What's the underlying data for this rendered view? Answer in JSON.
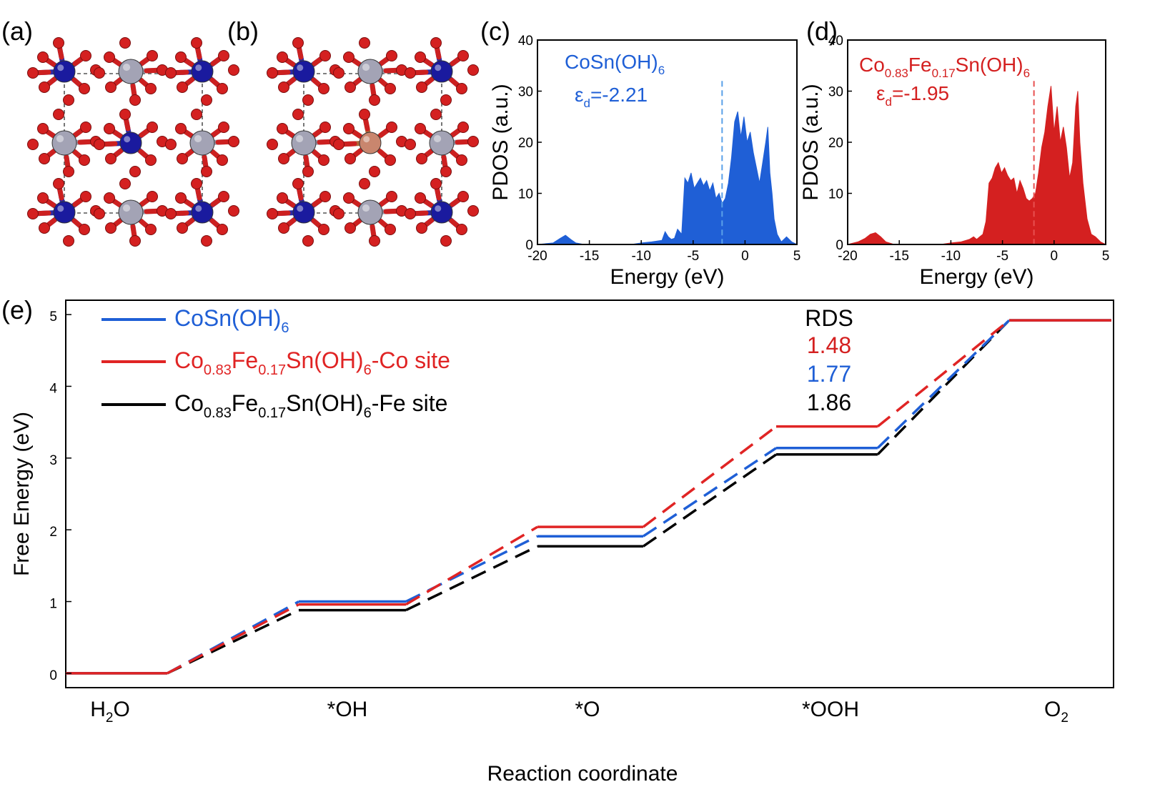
{
  "panel_labels": {
    "a": "(a)",
    "b": "(b)",
    "c": "(c)",
    "d": "(d)",
    "e": "(e)"
  },
  "colors": {
    "blue": "#1f5fd6",
    "red": "#e02424",
    "black": "#000000",
    "co_atom": "#1a1a9e",
    "sn_atom": "#a3a3b5",
    "o_atom": "#d42020",
    "fe_atom": "#c9866e"
  },
  "structures": {
    "a": {
      "atoms": [
        "Co",
        "Sn",
        "O"
      ]
    },
    "b": {
      "atoms": [
        "Co",
        "Sn",
        "Fe",
        "O"
      ]
    }
  },
  "chart_data": [
    {
      "id": "c",
      "type": "area",
      "xlabel": "Energy (eV)",
      "ylabel": "PDOS (a.u.)",
      "xlim": [
        -20,
        5
      ],
      "ylim": [
        0,
        40
      ],
      "xticks": [
        "-20",
        "-15",
        "-10",
        "-5",
        "0",
        "5"
      ],
      "yticks": [
        "0",
        "10",
        "20",
        "30",
        "40"
      ],
      "legend_main": "CoSn(OH)",
      "legend_sub": "6",
      "epsilon_label": "ε",
      "epsilon_sub": "d",
      "epsilon_value": "=-2.21",
      "d_band_center": -2.21,
      "color": "#1f5fd6",
      "x": [
        -20,
        -18.5,
        -17.8,
        -17.3,
        -16.8,
        -16.3,
        -15.5,
        -11,
        -10,
        -9,
        -8,
        -7.7,
        -7.4,
        -7.1,
        -6.8,
        -6.5,
        -6.1,
        -5.8,
        -5.5,
        -5.2,
        -4.9,
        -4.6,
        -4.3,
        -4.0,
        -3.7,
        -3.4,
        -3.1,
        -2.8,
        -2.5,
        -2.2,
        -1.9,
        -1.6,
        -1.3,
        -1.0,
        -0.7,
        -0.4,
        -0.1,
        0.2,
        0.5,
        0.8,
        1.1,
        1.4,
        1.7,
        2.0,
        2.2,
        2.4,
        2.6,
        2.8,
        3.1,
        3.5,
        4.0,
        4.5,
        5.0
      ],
      "y": [
        0,
        0.3,
        1.2,
        1.8,
        1.0,
        0.3,
        0,
        0,
        0.3,
        0.5,
        0.8,
        2.5,
        1.5,
        1.0,
        1.2,
        3.0,
        2.0,
        13,
        12,
        14,
        11,
        12,
        13,
        11.5,
        12.5,
        10.5,
        12,
        9,
        10,
        8,
        9,
        12,
        17,
        24,
        26,
        21,
        25,
        20,
        22,
        18,
        15,
        12,
        16,
        20,
        23,
        14,
        10,
        5,
        2,
        0.5,
        1.5,
        0.5,
        0
      ]
    },
    {
      "id": "d",
      "type": "area",
      "xlabel": "Energy (eV)",
      "ylabel": "PDOS (a.u.)",
      "xlim": [
        -20,
        5
      ],
      "ylim": [
        0,
        40
      ],
      "xticks": [
        "-20",
        "-15",
        "-10",
        "-5",
        "0",
        "5"
      ],
      "yticks": [
        "0",
        "10",
        "20",
        "30",
        "40"
      ],
      "legend_parts": [
        {
          "t": "Co",
          "sub": false
        },
        {
          "t": "0.83",
          "sub": true
        },
        {
          "t": "Fe",
          "sub": false
        },
        {
          "t": "0.17",
          "sub": true
        },
        {
          "t": "Sn(OH)",
          "sub": false
        },
        {
          "t": "6",
          "sub": true
        }
      ],
      "epsilon_label": "ε",
      "epsilon_sub": "d",
      "epsilon_value": "=-1.95",
      "d_band_center": -1.95,
      "color": "#d42020",
      "x": [
        -20,
        -19,
        -18.3,
        -17.8,
        -17.3,
        -16.8,
        -16.3,
        -15.5,
        -11,
        -10,
        -9,
        -8.2,
        -7.8,
        -7.5,
        -7.2,
        -6.9,
        -6.6,
        -6.3,
        -6.0,
        -5.7,
        -5.4,
        -5.1,
        -4.8,
        -4.5,
        -4.2,
        -3.9,
        -3.6,
        -3.3,
        -3.0,
        -2.7,
        -2.4,
        -2.1,
        -1.8,
        -1.5,
        -1.2,
        -0.9,
        -0.6,
        -0.3,
        0.0,
        0.3,
        0.6,
        0.9,
        1.2,
        1.5,
        1.8,
        2.1,
        2.3,
        2.5,
        2.8,
        3.2,
        3.6,
        4.0,
        4.5,
        5.0
      ],
      "y": [
        0,
        0.5,
        1.2,
        2.0,
        2.3,
        1.5,
        0.5,
        0,
        0,
        0.3,
        0.5,
        1.0,
        1.5,
        1.0,
        1.5,
        2.0,
        4.5,
        12,
        13,
        15,
        16,
        14,
        15,
        13.5,
        12.5,
        13,
        10,
        12.5,
        11,
        9,
        8.5,
        9,
        10,
        14,
        19,
        22,
        27,
        31,
        22,
        27,
        20,
        23,
        19,
        13,
        16,
        27,
        30,
        20,
        12,
        5,
        2,
        1.5,
        0.5,
        0
      ]
    },
    {
      "id": "e",
      "type": "line",
      "xlabel": "Reaction coordinate",
      "ylabel": "Free Energy (eV)",
      "ylim": [
        -0.2,
        5.2
      ],
      "yticks": [
        "0",
        "1",
        "2",
        "3",
        "4",
        "5"
      ],
      "categories": [
        {
          "main": "H",
          "sub": "2",
          "tail": "O"
        },
        {
          "main": "*OH",
          "sub": "",
          "tail": ""
        },
        {
          "main": "*O",
          "sub": "",
          "tail": ""
        },
        {
          "main": "*OOH",
          "sub": "",
          "tail": ""
        },
        {
          "main": "O",
          "sub": "2",
          "tail": ""
        }
      ],
      "series": [
        {
          "legend_parts": [
            {
              "t": "CoSn(OH)",
              "sub": false
            },
            {
              "t": "6",
              "sub": true
            }
          ],
          "color": "#1f5fd6",
          "values": [
            0,
            1.0,
            1.91,
            3.14,
            4.92
          ]
        },
        {
          "legend_parts": [
            {
              "t": "Co",
              "sub": false
            },
            {
              "t": "0.83",
              "sub": true
            },
            {
              "t": "Fe",
              "sub": false
            },
            {
              "t": "0.17",
              "sub": true
            },
            {
              "t": "Sn(OH)",
              "sub": false
            },
            {
              "t": "6",
              "sub": true
            },
            {
              "t": "-Co site",
              "sub": false
            }
          ],
          "color": "#e02424",
          "values": [
            0,
            0.96,
            2.04,
            3.44,
            4.92
          ]
        },
        {
          "legend_parts": [
            {
              "t": "Co",
              "sub": false
            },
            {
              "t": "0.83",
              "sub": true
            },
            {
              "t": "Fe",
              "sub": false
            },
            {
              "t": "0.17",
              "sub": true
            },
            {
              "t": "Sn(OH)",
              "sub": false
            },
            {
              "t": "6",
              "sub": true
            },
            {
              "t": "-Fe site",
              "sub": false
            }
          ],
          "color": "#000000",
          "values": [
            0,
            0.88,
            1.77,
            3.05,
            4.92
          ]
        }
      ],
      "rds": {
        "title": "RDS",
        "values": [
          {
            "text": "1.48",
            "color": "#d42020"
          },
          {
            "text": "1.77",
            "color": "#1f5fd6"
          },
          {
            "text": "1.86",
            "color": "#000000"
          }
        ]
      }
    }
  ]
}
